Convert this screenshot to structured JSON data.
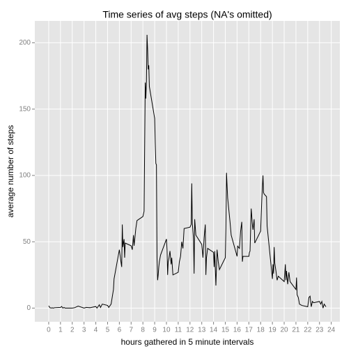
{
  "chart_data": {
    "type": "line",
    "title": "Time series of avg steps (NA's omitted)",
    "x_label": "hours gathered in 5 minute intervals",
    "y_label": "average number of steps",
    "color": "#000000",
    "x": [
      0,
      0.1,
      0.2,
      0.3,
      0.4,
      0.5,
      1.0,
      1.1,
      1.2,
      1.3,
      1.4,
      1.5,
      2.0,
      2.2,
      2.5,
      3.0,
      3.2,
      3.5,
      4.0,
      4.1,
      4.3,
      4.4,
      4.55,
      5.0,
      5.1,
      5.3,
      5.5,
      5.55,
      6.0,
      6.1,
      6.2,
      6.25,
      6.3,
      6.4,
      6.45,
      6.5,
      7.0,
      7.1,
      7.2,
      7.25,
      7.3,
      7.4,
      7.5,
      8.0,
      8.05,
      8.1,
      8.2,
      8.25,
      8.3,
      8.35,
      8.4,
      8.45,
      8.5,
      8.55,
      9.0,
      9.05,
      9.1,
      9.15,
      9.2,
      9.25,
      9.3,
      9.35,
      9.4,
      9.5,
      10.0,
      10.05,
      10.1,
      10.15,
      10.2,
      10.3,
      10.4,
      10.45,
      10.55,
      11.0,
      11.1,
      11.2,
      11.3,
      11.4,
      11.5,
      12.0,
      12.1,
      12.15,
      12.2,
      12.3,
      12.35,
      12.4,
      12.5,
      13.0,
      13.1,
      13.2,
      13.3,
      13.35,
      13.4,
      13.5,
      14.0,
      14.05,
      14.1,
      14.2,
      14.3,
      14.4,
      14.5,
      15.0,
      15.05,
      15.1,
      15.2,
      15.3,
      15.4,
      15.5,
      16.0,
      16.05,
      16.1,
      16.2,
      16.3,
      16.4,
      16.45,
      16.5,
      17.0,
      17.05,
      17.1,
      17.2,
      17.3,
      17.35,
      17.45,
      17.5,
      18.0,
      18.1,
      18.2,
      18.25,
      18.3,
      18.5,
      18.55,
      19.0,
      19.05,
      19.1,
      19.15,
      19.2,
      19.3,
      19.4,
      19.5,
      20.0,
      20.1,
      20.15,
      20.2,
      20.3,
      20.4,
      20.5,
      21.0,
      21.05,
      21.1,
      21.2,
      21.3,
      21.5,
      22.0,
      22.1,
      22.2,
      22.3,
      22.4,
      22.5,
      23.0,
      23.1,
      23.2,
      23.3,
      23.4,
      23.55
    ],
    "values": [
      1.7,
      0.3,
      0.1,
      0.2,
      0,
      0.3,
      0.5,
      1.2,
      0,
      0.5,
      0,
      0,
      0,
      0.3,
      1.5,
      0,
      0.5,
      0.3,
      1.2,
      0,
      2.5,
      0.5,
      3,
      2,
      0.5,
      3,
      14,
      22,
      44,
      37,
      31,
      63,
      46,
      52,
      38,
      49,
      47,
      44,
      55,
      47,
      51,
      60,
      66,
      69,
      71,
      73,
      170,
      158,
      171,
      206,
      195,
      180,
      183,
      167,
      143,
      124,
      109,
      108,
      38,
      21,
      25,
      31,
      35,
      40,
      52,
      44,
      25,
      35,
      37,
      43,
      33,
      38,
      25,
      27,
      35,
      39,
      50,
      45,
      60,
      61,
      63,
      94,
      64,
      52,
      26,
      67,
      55,
      48,
      38,
      53,
      63,
      25,
      38,
      45,
      42,
      31,
      43,
      17,
      44,
      35,
      29,
      38,
      60,
      102,
      83,
      74,
      65,
      55,
      39,
      47,
      46,
      45,
      58,
      65,
      35,
      39,
      39,
      42,
      43,
      75,
      63,
      59,
      67,
      49,
      58,
      82,
      100,
      87,
      86,
      84,
      62,
      22,
      33,
      26,
      46,
      34,
      28,
      21,
      24,
      20,
      33,
      21,
      28,
      18,
      27,
      20,
      14,
      23,
      10,
      8,
      3,
      2,
      1,
      8,
      9,
      1,
      5,
      4,
      5,
      3,
      5,
      0,
      3,
      1
    ],
    "xlim": [
      -1.18,
      24.73
    ],
    "ylim": [
      -10.3,
      216.5
    ],
    "xticks": [
      0,
      1,
      2,
      3,
      4,
      5,
      6,
      7,
      8,
      9,
      10,
      11,
      12,
      13,
      14,
      15,
      16,
      17,
      18,
      19,
      20,
      21,
      22,
      23,
      24
    ],
    "yticks": [
      0,
      50,
      100,
      150,
      200
    ],
    "grid": true
  }
}
